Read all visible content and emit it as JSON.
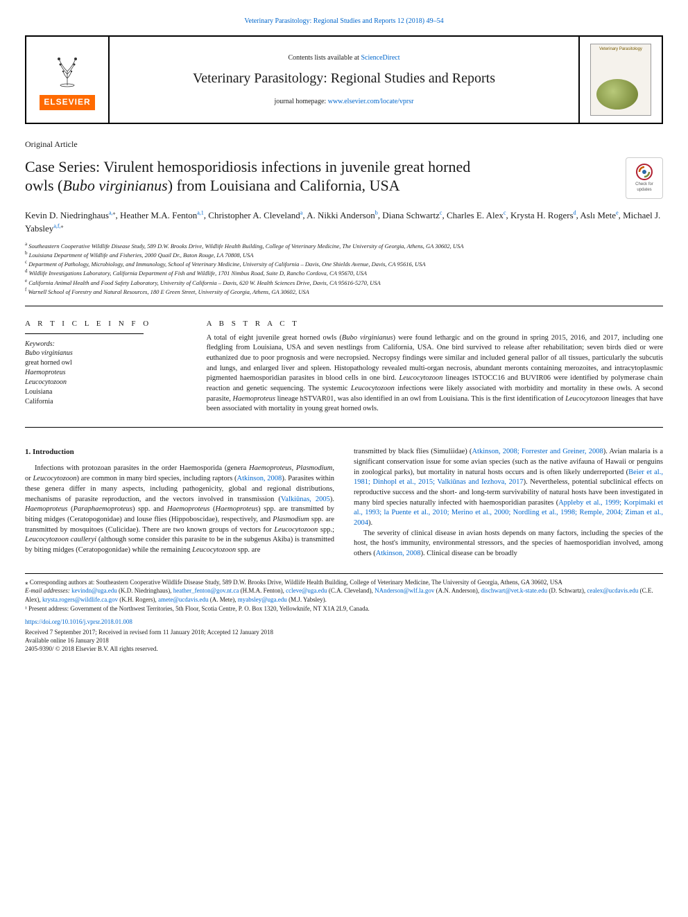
{
  "top_ref": {
    "journal": "Veterinary Parasitology: Regional Studies and Reports",
    "citation": "12 (2018) 49–54",
    "text_color": "#0066cc"
  },
  "header": {
    "contents_prefix": "Contents lists available at ",
    "contents_link": "ScienceDirect",
    "journal_name": "Veterinary Parasitology: Regional Studies and Reports",
    "homepage_prefix": "journal homepage: ",
    "homepage_link": "www.elsevier.com/locate/vprsr",
    "elsevier_label": "ELSEVIER",
    "cover_label": "Veterinary Parasitology"
  },
  "article_type": "Original Article",
  "title": {
    "line1": "Case Series: Virulent hemosporidiosis infections in juvenile great horned",
    "line2_pre": "owls (",
    "line2_ital": "Bubo virginianus",
    "line2_post": ") from Louisiana and California, USA"
  },
  "updates_badge": {
    "line1": "Check for",
    "line2": "updates"
  },
  "authors": [
    {
      "name": "Kevin D. Niedringhaus",
      "aff": "a,",
      "sym": "⁎"
    },
    {
      "name": "Heather M.A. Fenton",
      "aff": "a,1"
    },
    {
      "name": "Christopher A. Cleveland",
      "aff": "a"
    },
    {
      "name": "A. Nikki Anderson",
      "aff": "b"
    },
    {
      "name": "Diana Schwartz",
      "aff": "c"
    },
    {
      "name": "Charles E. Alex",
      "aff": "c"
    },
    {
      "name": "Krysta H. Rogers",
      "aff": "d"
    },
    {
      "name": "Aslı Mete",
      "aff": "e"
    },
    {
      "name": "Michael J. Yabsley",
      "aff": "a,f,",
      "sym": "⁎"
    }
  ],
  "affiliations": {
    "a": "Southeastern Cooperative Wildlife Disease Study, 589 D.W. Brooks Drive, Wildlife Health Building, College of Veterinary Medicine, The University of Georgia, Athens, GA 30602, USA",
    "b": "Louisiana Department of Wildlife and Fisheries, 2000 Quail Dr., Baton Rouge, LA 70808, USA",
    "c": "Department of Pathology, Microbiology, and Immunology, School of Veterinary Medicine, University of California – Davis, One Shields Avenue, Davis, CA 95616, USA",
    "d": "Wildlife Investigations Laboratory, California Department of Fish and Wildlife, 1701 Nimbus Road, Suite D, Rancho Cordova, CA 95670, USA",
    "e": "California Animal Health and Food Safety Laboratory, University of California – Davis, 620 W. Health Sciences Drive, Davis, CA 95616-5270, USA",
    "f": "Warnell School of Forestry and Natural Resources, 180 E Green Street, University of Georgia, Athens, GA 30602, USA"
  },
  "article_info": {
    "heading": "A R T I C L E  I N F O",
    "kw_label": "Keywords:",
    "keywords": [
      "Bubo virginianus",
      "great horned owl",
      "Haemoproteus",
      "Leucocytozoon",
      "Louisiana",
      "California"
    ],
    "kw_italic_idx": [
      0,
      2,
      3
    ]
  },
  "abstract": {
    "heading": "A B S T R A C T",
    "text_parts": [
      {
        "t": "A total of eight juvenile great horned owls ("
      },
      {
        "t": "Bubo virginianus",
        "ital": true
      },
      {
        "t": ") were found lethargic and on the ground in spring 2015, 2016, and 2017, including one fledgling from Louisiana, USA and seven nestlings from California, USA. One bird survived to release after rehabilitation; seven birds died or were euthanized due to poor prognosis and were necropsied. Necropsy findings were similar and included general pallor of all tissues, particularly the subcutis and lungs, and enlarged liver and spleen. Histopathology revealed multi-organ necrosis, abundant meronts containing merozoites, and intracytoplasmic pigmented haemosporidian parasites in blood cells in one bird. "
      },
      {
        "t": "Leucocytozoon",
        "ital": true
      },
      {
        "t": " lineages lSTOCC16 and BUVIR06 were identified by polymerase chain reaction and genetic sequencing. The systemic "
      },
      {
        "t": "Leucocytozoon",
        "ital": true
      },
      {
        "t": " infections were likely associated with morbidity and mortality in these owls. A second parasite, "
      },
      {
        "t": "Haemoproteus",
        "ital": true
      },
      {
        "t": " lineage hSTVAR01, was also identified in an owl from Louisiana. This is the first identification of "
      },
      {
        "t": "Leucocytozoon",
        "ital": true
      },
      {
        "t": " lineages that have been associated with mortality in young great horned owls."
      }
    ]
  },
  "body": {
    "left": {
      "heading": "1. Introduction",
      "para": [
        {
          "t": "Infections with protozoan parasites in the order Haemosporida (genera "
        },
        {
          "t": "Haemoproteus",
          "ital": true
        },
        {
          "t": ", "
        },
        {
          "t": "Plasmodium",
          "ital": true
        },
        {
          "t": ", or "
        },
        {
          "t": "Leucocytozoon",
          "ital": true
        },
        {
          "t": ") are common in many bird species, including raptors ("
        },
        {
          "t": "Atkinson, 2008",
          "link": true
        },
        {
          "t": "). Parasites within these genera differ in many aspects, including pathogenicity, global and regional distributions, mechanisms of parasite reproduction, and the vectors involved in transmission ("
        },
        {
          "t": "Valkiūnas, 2005",
          "link": true
        },
        {
          "t": "). "
        },
        {
          "t": "Haemoproteus",
          "ital": true
        },
        {
          "t": " ("
        },
        {
          "t": "Paraphaemoproteus",
          "ital": true
        },
        {
          "t": ") spp. and "
        },
        {
          "t": "Haemoproteus",
          "ital": true
        },
        {
          "t": " ("
        },
        {
          "t": "Haemoproteus",
          "ital": true
        },
        {
          "t": ") spp. are transmitted by biting midges (Ceratopogonidae) and louse flies (Hippoboscidae), respectively, and "
        },
        {
          "t": "Plasmodium",
          "ital": true
        },
        {
          "t": " spp. are transmitted by mosquitoes (Culicidae). There are two known groups of vectors for "
        },
        {
          "t": "Leucocytozoon",
          "ital": true
        },
        {
          "t": " spp.; "
        },
        {
          "t": "Leucocytozoon caulleryi",
          "ital": true
        },
        {
          "t": " (although some consider this parasite to be in the subgenus Akiba) is transmitted by biting midges (Ceratopogonidae) while the remaining "
        },
        {
          "t": "Leucocytozoon",
          "ital": true
        },
        {
          "t": " spp. are"
        }
      ]
    },
    "right": {
      "para1": [
        {
          "t": "transmitted by black flies (Simuliidae) ("
        },
        {
          "t": "Atkinson, 2008; Forrester and Greiner, 2008",
          "link": true
        },
        {
          "t": "). Avian malaria is a significant conservation issue for some avian species (such as the native avifauna of Hawaii or penguins in zoological parks), but mortality in natural hosts occurs and is often likely underreported ("
        },
        {
          "t": "Beier et al., 1981; Dinhopl et al., 2015; Valkiūnas and Iezhova, 2017",
          "link": true
        },
        {
          "t": "). Nevertheless, potential subclinical effects on reproductive success and the short- and long-term survivability of natural hosts have been investigated in many bird species naturally infected with haemosporidian parasites ("
        },
        {
          "t": "Appleby et al., 1999; Korpimaki et al., 1993; la Puente et al., 2010; Merino et al., 2000; Nordling et al., 1998; Remple, 2004; Ziman et al., 2004",
          "link": true
        },
        {
          "t": ")."
        }
      ],
      "para2": [
        {
          "t": "The severity of clinical disease in avian hosts depends on many factors, including the species of the host, the host's immunity, environmental stressors, and the species of haemosporidian involved, among others ("
        },
        {
          "t": "Atkinson, 2008",
          "link": true
        },
        {
          "t": "). Clinical disease can be broadly"
        }
      ]
    }
  },
  "footnotes": {
    "corr": "⁎ Corresponding authors at: Southeastern Cooperative Wildlife Disease Study, 589 D.W. Brooks Drive, Wildlife Health Building, College of Veterinary Medicine, The University of Georgia, Athens, GA 30602, USA",
    "emails_label": "E-mail addresses:",
    "emails": [
      {
        "e": "kevindn@uga.edu",
        "n": "(K.D. Niedringhaus)"
      },
      {
        "e": "heather_fenton@gov.nt.ca",
        "n": "(H.M.A. Fenton)"
      },
      {
        "e": "ccleve@uga.edu",
        "n": "(C.A. Cleveland)"
      },
      {
        "e": "NAnderson@wlf.la.gov",
        "n": "(A.N. Anderson)"
      },
      {
        "e": "dischwart@vet.k-state.edu",
        "n": "(D. Schwartz)"
      },
      {
        "e": "cealex@ucdavis.edu",
        "n": "(C.E. Alex)"
      },
      {
        "e": "krysta.rogers@wildlife.ca.gov",
        "n": "(K.H. Rogers)"
      },
      {
        "e": "amete@ucdavis.edu",
        "n": "(A. Mete)"
      },
      {
        "e": "myabsley@uga.edu",
        "n": "(M.J. Yabsley)"
      }
    ],
    "present": "¹ Present address: Government of the Northwest Territories, 5th Floor, Scotia Centre, P. O. Box 1320, Yellowknife, NT X1A 2L9, Canada."
  },
  "doi": "https://doi.org/10.1016/j.vprsr.2018.01.008",
  "history": {
    "received": "Received 7 September 2017; Received in revised form 11 January 2018; Accepted 12 January 2018",
    "online": "Available online 16 January 2018",
    "copyright": "2405-9390/ © 2018 Elsevier B.V. All rights reserved."
  },
  "colors": {
    "link": "#0066cc",
    "elsevier_orange": "#ff6a00",
    "text": "#1a1a1a",
    "border": "#000000"
  },
  "typography": {
    "body_pt": 10.5,
    "title_pt": 22,
    "journal_pt": 20,
    "footnote_pt": 9,
    "affil_pt": 8.5
  }
}
